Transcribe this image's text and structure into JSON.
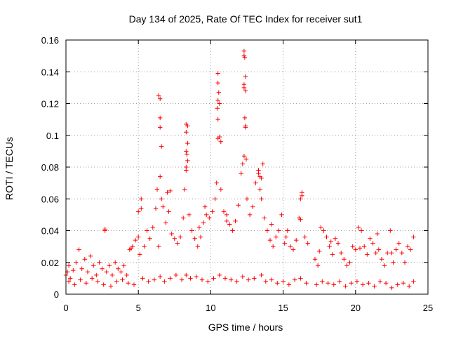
{
  "chart_data": {
    "type": "scatter",
    "title": "Day 134 of 2025, Rate Of TEC Index for receiver sut1",
    "xlabel": "GPS time / hours",
    "ylabel": "ROTI / TECUs",
    "xlim": [
      0,
      25
    ],
    "ylim": [
      0,
      0.16
    ],
    "xticks": [
      "0",
      "5",
      "10",
      "15",
      "20",
      "25"
    ],
    "yticks": [
      "0",
      "0.02",
      "0.04",
      "0.06",
      "0.08",
      "0.1",
      "0.12",
      "0.14",
      "0.16"
    ],
    "xtick_values": [
      0,
      5,
      10,
      15,
      20,
      25
    ],
    "ytick_values": [
      0,
      0.02,
      0.04,
      0.06,
      0.08,
      0.1,
      0.12,
      0.14,
      0.16
    ],
    "grid": true,
    "marker": "+",
    "color": "#ff0000",
    "series": [
      {
        "name": "ROTI",
        "x": [
          0.0,
          0.1,
          0.2,
          0.3,
          0.5,
          0.7,
          0.9,
          1.1,
          1.3,
          1.5,
          1.7,
          1.9,
          2.1,
          2.3,
          2.5,
          2.7,
          2.8,
          3.0,
          3.2,
          3.4,
          3.6,
          3.8,
          4.0,
          4.2,
          4.4,
          4.6,
          4.8,
          5.0,
          5.1,
          5.2,
          5.4,
          5.6,
          5.8,
          6.0,
          6.2,
          6.3,
          6.4,
          6.5,
          6.6,
          6.7,
          6.9,
          7.1,
          7.3,
          7.5,
          7.7,
          7.9,
          8.1,
          8.2,
          8.3,
          8.4,
          8.5,
          8.7,
          8.9,
          9.1,
          9.3,
          9.5,
          9.7,
          9.9,
          10.1,
          10.3,
          10.4,
          10.5,
          10.6,
          10.7,
          10.9,
          11.1,
          11.3,
          11.5,
          11.7,
          11.9,
          12.1,
          12.2,
          12.3,
          12.4,
          12.5,
          12.7,
          12.9,
          13.1,
          13.3,
          13.4,
          13.5,
          13.7,
          13.9,
          14.1,
          14.3,
          14.5,
          14.7,
          14.9,
          15.1,
          15.3,
          15.5,
          15.7,
          15.9,
          16.1,
          16.2,
          16.3,
          16.5,
          16.7,
          17.2,
          17.4,
          17.6,
          17.8,
          18.0,
          18.2,
          18.4,
          18.6,
          18.8,
          19.0,
          19.2,
          19.4,
          19.6,
          19.8,
          20.0,
          20.2,
          20.4,
          20.6,
          20.8,
          21.0,
          21.2,
          21.4,
          21.6,
          21.8,
          22.0,
          22.2,
          22.4,
          22.6,
          22.8,
          23.0,
          23.2,
          23.4,
          23.6,
          23.8,
          24.0,
          0.2,
          0.6,
          1.0,
          1.4,
          1.8,
          2.2,
          2.6,
          3.1,
          3.5,
          3.9,
          4.3,
          4.7,
          5.3,
          5.7,
          6.1,
          6.5,
          6.8,
          7.2,
          7.6,
          8.0,
          8.3,
          8.6,
          9.0,
          9.4,
          9.8,
          10.2,
          10.6,
          11.0,
          11.4,
          11.8,
          12.2,
          12.6,
          13.0,
          13.5,
          13.8,
          14.2,
          14.6,
          15.0,
          15.4,
          15.8,
          16.2,
          16.6,
          17.3,
          17.7,
          18.1,
          18.5,
          18.9,
          19.3,
          19.7,
          20.1,
          20.5,
          20.9,
          21.3,
          21.7,
          22.1,
          22.5,
          22.9,
          23.3,
          23.7,
          24.0,
          6.4,
          6.5,
          6.5,
          6.6,
          6.5,
          8.3,
          8.3,
          8.4,
          8.3,
          8.35,
          8.4,
          8.3,
          10.5,
          10.5,
          10.55,
          10.5,
          10.45,
          10.5,
          10.6,
          10.7,
          12.3,
          12.3,
          12.35,
          12.4,
          12.3,
          12.35,
          12.4,
          12.3,
          12.45,
          12.4,
          13.3,
          13.4,
          13.5,
          13.6,
          16.3,
          16.2,
          7.0,
          7.2,
          2.7,
          4.5,
          17.5,
          18.3,
          20.3,
          21.5,
          22.5,
          15.2,
          14.2,
          5.0,
          5.2,
          9.6,
          11.1,
          9.2
        ],
        "y": [
          0.012,
          0.014,
          0.018,
          0.01,
          0.015,
          0.02,
          0.028,
          0.016,
          0.022,
          0.014,
          0.024,
          0.018,
          0.012,
          0.02,
          0.016,
          0.041,
          0.014,
          0.018,
          0.012,
          0.02,
          0.016,
          0.014,
          0.018,
          0.012,
          0.028,
          0.03,
          0.034,
          0.036,
          0.025,
          0.054,
          0.03,
          0.04,
          0.035,
          0.042,
          0.054,
          0.066,
          0.03,
          0.074,
          0.06,
          0.055,
          0.045,
          0.052,
          0.038,
          0.035,
          0.032,
          0.036,
          0.048,
          0.066,
          0.08,
          0.106,
          0.05,
          0.04,
          0.035,
          0.03,
          0.036,
          0.045,
          0.05,
          0.048,
          0.052,
          0.06,
          0.07,
          0.098,
          0.12,
          0.066,
          0.052,
          0.046,
          0.044,
          0.04,
          0.046,
          0.056,
          0.076,
          0.082,
          0.13,
          0.106,
          0.06,
          0.05,
          0.055,
          0.07,
          0.078,
          0.066,
          0.06,
          0.048,
          0.04,
          0.034,
          0.03,
          0.036,
          0.04,
          0.05,
          0.032,
          0.04,
          0.03,
          0.028,
          0.034,
          0.048,
          0.06,
          0.064,
          0.036,
          0.032,
          0.022,
          0.018,
          0.042,
          0.04,
          0.036,
          0.03,
          0.025,
          0.035,
          0.032,
          0.026,
          0.022,
          0.018,
          0.02,
          0.03,
          0.028,
          0.042,
          0.04,
          0.03,
          0.025,
          0.035,
          0.032,
          0.026,
          0.028,
          0.022,
          0.018,
          0.026,
          0.04,
          0.02,
          0.028,
          0.032,
          0.026,
          0.02,
          0.03,
          0.028,
          0.036,
          0.008,
          0.006,
          0.009,
          0.007,
          0.01,
          0.008,
          0.006,
          0.005,
          0.008,
          0.009,
          0.007,
          0.006,
          0.01,
          0.008,
          0.009,
          0.011,
          0.008,
          0.01,
          0.012,
          0.009,
          0.012,
          0.01,
          0.011,
          0.009,
          0.008,
          0.01,
          0.012,
          0.01,
          0.009,
          0.008,
          0.011,
          0.009,
          0.01,
          0.012,
          0.008,
          0.009,
          0.007,
          0.008,
          0.006,
          0.009,
          0.01,
          0.007,
          0.006,
          0.008,
          0.007,
          0.006,
          0.008,
          0.005,
          0.007,
          0.008,
          0.006,
          0.007,
          0.005,
          0.008,
          0.007,
          0.004,
          0.006,
          0.007,
          0.005,
          0.008,
          0.125,
          0.123,
          0.111,
          0.093,
          0.105,
          0.107,
          0.102,
          0.095,
          0.09,
          0.088,
          0.084,
          0.078,
          0.139,
          0.133,
          0.127,
          0.122,
          0.117,
          0.11,
          0.099,
          0.096,
          0.153,
          0.15,
          0.149,
          0.137,
          0.132,
          0.111,
          0.105,
          0.087,
          0.085,
          0.128,
          0.076,
          0.074,
          0.073,
          0.082,
          0.062,
          0.047,
          0.064,
          0.065,
          0.04,
          0.029,
          0.027,
          0.033,
          0.029,
          0.038,
          0.026,
          0.036,
          0.044,
          0.052,
          0.06,
          0.055,
          0.05,
          0.042
        ]
      }
    ]
  }
}
